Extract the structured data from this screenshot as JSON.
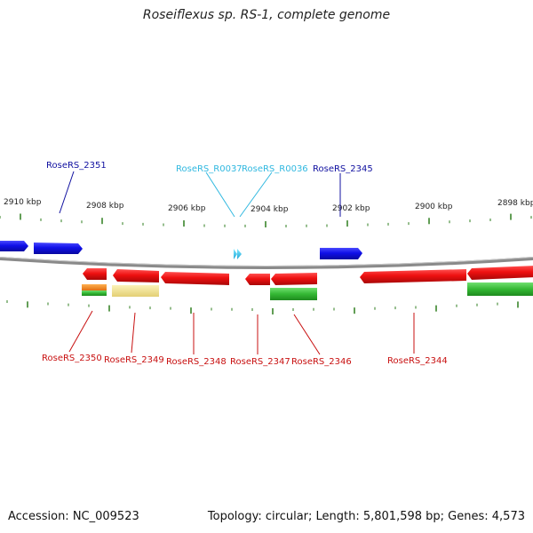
{
  "title": "Roseiflexus sp. RS-1, complete genome",
  "footer": {
    "accession": "Accession: NC_009523",
    "summary": "Topology: circular; Length: 5,801,598 bp; Genes: 4,573"
  },
  "colors": {
    "forward_gene": "#1010e0",
    "reverse_gene": "#e01010",
    "rna": "#30c8e8",
    "backbone": "#8a8a8a",
    "tick": "#2e7d1e",
    "cds_green": "#3ab53a",
    "cds_yellow": "#f0e08c",
    "cds_orange": "#f08c1e"
  },
  "ticks": [
    "2910 kbp",
    "2908 kbp",
    "2906 kbp",
    "2904 kbp",
    "2902 kbp",
    "2900 kbp",
    "2898 kbp"
  ],
  "forward_labels": [
    {
      "id": "RoseRS_2351",
      "color": "#1010a0"
    },
    {
      "id": "RoseRS_R0037",
      "color": "#30b8e0"
    },
    {
      "id": "RoseRS_R0036",
      "color": "#30b8e0"
    },
    {
      "id": "RoseRS_2345",
      "color": "#1010a0"
    }
  ],
  "reverse_labels": [
    {
      "id": "RoseRS_2350"
    },
    {
      "id": "RoseRS_2349"
    },
    {
      "id": "RoseRS_2348"
    },
    {
      "id": "RoseRS_2347"
    },
    {
      "id": "RoseRS_2346"
    },
    {
      "id": "RoseRS_2344"
    }
  ]
}
